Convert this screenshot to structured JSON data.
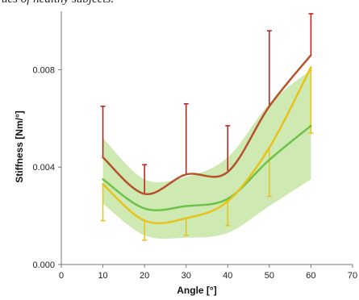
{
  "caption": "ues of healthy subjects.",
  "chart_data": {
    "type": "line",
    "title": "",
    "xlabel": "Angle [°]",
    "ylabel": "Stiffness [Nm/°]",
    "xlim": [
      0,
      70
    ],
    "ylim": [
      0,
      0.0104
    ],
    "xticks": [
      0,
      10,
      20,
      30,
      40,
      50,
      60,
      70
    ],
    "xtick_labels": [
      "0",
      "10",
      "20",
      "30",
      "40",
      "50",
      "60",
      "70"
    ],
    "yticks": [
      0.0,
      0.004,
      0.008
    ],
    "ytick_labels": [
      "0.000",
      "0.004",
      "0.008"
    ],
    "grid": false,
    "legend": "none",
    "x": [
      10,
      20,
      30,
      40,
      50,
      60
    ],
    "series": [
      {
        "color": "#c01818",
        "line_color": "#b5532a",
        "values": [
          0.0044,
          0.0029,
          0.0037,
          0.0038,
          0.0065,
          0.0086
        ],
        "error_upper": [
          0.0065,
          0.0041,
          0.0066,
          0.0057,
          0.0096,
          0.0103
        ]
      },
      {
        "color": "#e6c21a",
        "line_color": "#e6c21a",
        "values": [
          0.0033,
          0.0018,
          0.0019,
          0.0026,
          0.0048,
          0.0081
        ],
        "error_lower": [
          0.0018,
          0.001,
          0.0012,
          0.0016,
          0.0028,
          0.0054
        ]
      },
      {
        "color": "#6ec24a",
        "line_color": "#6ec24a",
        "values": [
          0.0035,
          0.0023,
          0.0024,
          0.0027,
          0.0043,
          0.0057
        ],
        "band_lower": [
          0.0025,
          0.0012,
          0.0011,
          0.0013,
          0.0024,
          0.0035
        ],
        "band_upper": [
          0.0052,
          0.0035,
          0.0036,
          0.0044,
          0.0066,
          0.008
        ],
        "band_color": "#cfe9b3"
      }
    ]
  }
}
